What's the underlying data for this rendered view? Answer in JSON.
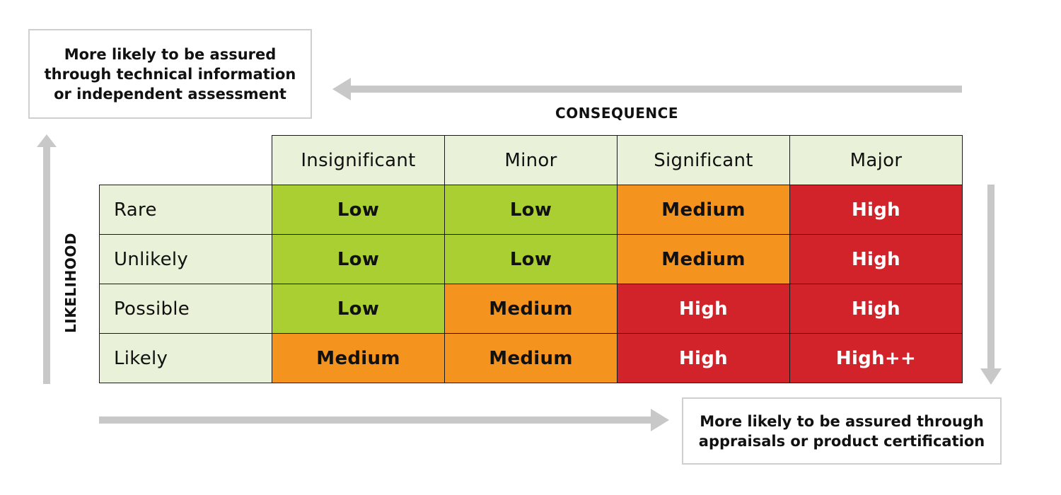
{
  "notes": {
    "top": [
      "More likely to be assured",
      "through technical information",
      "or independent assessment"
    ],
    "bottom": [
      "More likely to be assured through",
      "appraisals or product certification"
    ]
  },
  "axes": {
    "consequence": "CONSEQUENCE",
    "likelihood": "LIKELIHOOD"
  },
  "matrix": {
    "columns": [
      "Insignificant",
      "Minor",
      "Significant",
      "Major"
    ],
    "rows": [
      {
        "label": "Rare",
        "cells": [
          {
            "text": "Low",
            "level": "low"
          },
          {
            "text": "Low",
            "level": "low"
          },
          {
            "text": "Medium",
            "level": "medium"
          },
          {
            "text": "High",
            "level": "high"
          }
        ]
      },
      {
        "label": "Unlikely",
        "cells": [
          {
            "text": "Low",
            "level": "low"
          },
          {
            "text": "Low",
            "level": "low"
          },
          {
            "text": "Medium",
            "level": "medium"
          },
          {
            "text": "High",
            "level": "high"
          }
        ]
      },
      {
        "label": "Possible",
        "cells": [
          {
            "text": "Low",
            "level": "low"
          },
          {
            "text": "Medium",
            "level": "medium"
          },
          {
            "text": "High",
            "level": "high"
          },
          {
            "text": "High",
            "level": "high"
          }
        ]
      },
      {
        "label": "Likely",
        "cells": [
          {
            "text": "Medium",
            "level": "medium"
          },
          {
            "text": "Medium",
            "level": "medium"
          },
          {
            "text": "High",
            "level": "high"
          },
          {
            "text": "High++",
            "level": "high"
          }
        ]
      }
    ]
  },
  "colors": {
    "low": "#aacf33",
    "medium": "#f5931f",
    "high": "#d2232b",
    "header": "#e9f2d8",
    "arrow": "#c8c8c8"
  }
}
